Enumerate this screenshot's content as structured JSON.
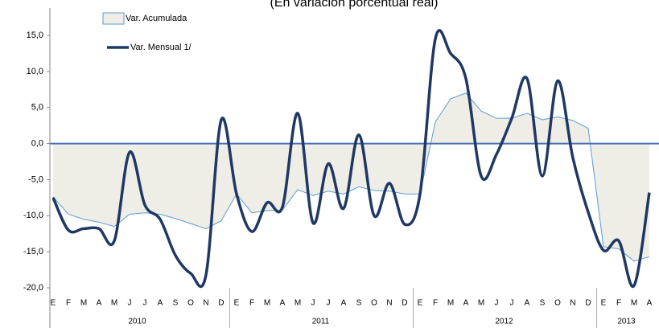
{
  "chart_data": {
    "type": "line",
    "title": "(En variación porcentual real)",
    "categories": [
      "E",
      "F",
      "M",
      "A",
      "M",
      "J",
      "J",
      "A",
      "S",
      "O",
      "N",
      "D",
      "E",
      "F",
      "M",
      "A",
      "M",
      "J",
      "J",
      "A",
      "S",
      "O",
      "N",
      "D",
      "E",
      "F",
      "M",
      "A",
      "M",
      "J",
      "J",
      "A",
      "S",
      "O",
      "N",
      "D",
      "E",
      "F",
      "M",
      "A"
    ],
    "years": [
      "2010",
      "2011",
      "2012",
      "2013"
    ],
    "series": [
      {
        "name": "Var. Acumulada",
        "kind": "area",
        "color": "#5b9bd5",
        "fill": "#eeeee6",
        "values": [
          -7.4,
          -9.8,
          -10.5,
          -10.9,
          -11.5,
          -9.8,
          -9.6,
          -9.8,
          -10.4,
          -11.1,
          -11.8,
          -10.7,
          -7,
          -9.6,
          -9.3,
          -9.2,
          -6.4,
          -7.2,
          -6.6,
          -7,
          -6,
          -6.5,
          -6.6,
          -7,
          -7,
          3,
          6.2,
          7,
          4.5,
          3.5,
          3.5,
          4.2,
          3.3,
          3.7,
          3.2,
          2.1,
          -14.3,
          -14.6,
          -16.3,
          -15.7
        ]
      },
      {
        "name": "Var. Mensual 1/",
        "kind": "line",
        "color": "#1f3864",
        "values": [
          -7.5,
          -12,
          -11.8,
          -11.8,
          -13.5,
          -1.2,
          -8.5,
          -10.5,
          -15.5,
          -18,
          -18.2,
          3.3,
          -7,
          -12.2,
          -8.2,
          -8.8,
          4.2,
          -11,
          -2.8,
          -9,
          1.2,
          -10,
          -5.5,
          -11.2,
          -7,
          14.5,
          12.5,
          9,
          -4.5,
          -1.5,
          3.5,
          9,
          -4.5,
          8.7,
          -2,
          -9.5,
          -14.8,
          -13.5,
          -19.7,
          -6.8
        ]
      }
    ],
    "ylim": [
      -20,
      15
    ],
    "yticks": [
      {
        "value": 15,
        "label": "15,0"
      },
      {
        "value": 10,
        "label": "10,0"
      },
      {
        "value": 5,
        "label": "5,0"
      },
      {
        "value": 0,
        "label": "0,0"
      },
      {
        "value": -5,
        "label": "-5,0"
      },
      {
        "value": -10,
        "label": "-10,0"
      },
      {
        "value": -15,
        "label": "-15,0"
      },
      {
        "value": -20,
        "label": "-20,0"
      }
    ]
  }
}
